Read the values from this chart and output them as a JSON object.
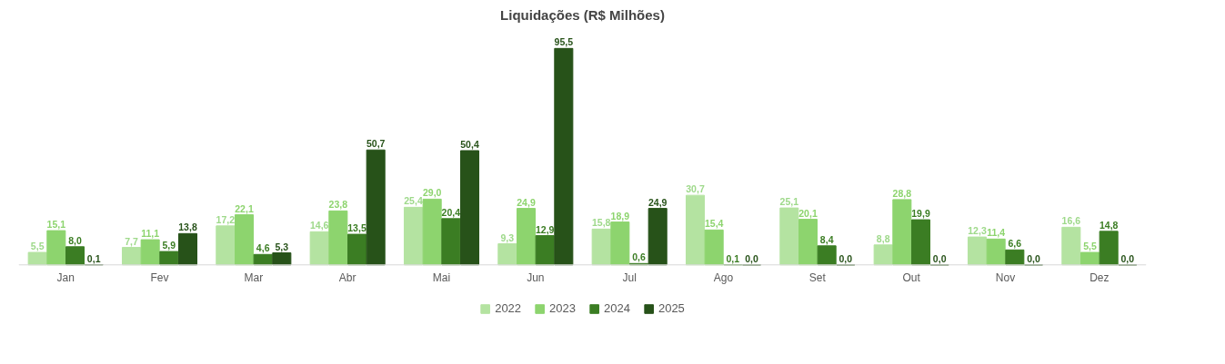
{
  "chart_data": {
    "type": "bar",
    "title": "Liquidações (R$ Milhões)",
    "categories": [
      "Jan",
      "Fev",
      "Mar",
      "Abr",
      "Mai",
      "Jun",
      "Jul",
      "Ago",
      "Set",
      "Out",
      "Nov",
      "Dez"
    ],
    "series": [
      {
        "name": "2022",
        "color": "#b4e3a1",
        "values": [
          5.5,
          7.7,
          17.2,
          14.6,
          25.4,
          9.3,
          15.8,
          30.7,
          25.1,
          8.8,
          12.3,
          16.6
        ],
        "value_labels": [
          "5,5",
          "7,7",
          "17,2",
          "14,6",
          "25,4",
          "9,3",
          "15,8",
          "30,7",
          "25,1",
          "8,8",
          "12,3",
          "16,6"
        ]
      },
      {
        "name": "2023",
        "color": "#8dd46e",
        "values": [
          15.1,
          11.1,
          22.1,
          23.8,
          29.0,
          24.9,
          18.9,
          15.4,
          20.1,
          28.8,
          11.4,
          5.5
        ],
        "value_labels": [
          "15,1",
          "11,1",
          "22,1",
          "23,8",
          "29,0",
          "24,9",
          "18,9",
          "15,4",
          "20,1",
          "28,8",
          "11,4",
          "5,5"
        ]
      },
      {
        "name": "2024",
        "color": "#3b7d23",
        "values": [
          8.0,
          5.9,
          4.6,
          13.5,
          20.4,
          12.9,
          0.6,
          0.1,
          8.4,
          19.9,
          6.6,
          14.8
        ],
        "value_labels": [
          "8,0",
          "5,9",
          "4,6",
          "13,5",
          "20,4",
          "12,9",
          "0,6",
          "0,1",
          "8,4",
          "19,9",
          "6,6",
          "14,8"
        ]
      },
      {
        "name": "2025",
        "color": "#275219",
        "values": [
          0.1,
          13.8,
          5.3,
          50.7,
          50.4,
          95.5,
          24.9,
          0.0,
          0.0,
          0.0,
          0.0,
          0.0
        ],
        "value_labels": [
          "0,1",
          "13,8",
          "5,3",
          "50,7",
          "50,4",
          "95,5",
          "24,9",
          "0,0",
          "0,0",
          "0,0",
          "0,0",
          "0,0"
        ]
      }
    ],
    "legend": "bottom",
    "grid": false,
    "tick_labels": "x"
  }
}
